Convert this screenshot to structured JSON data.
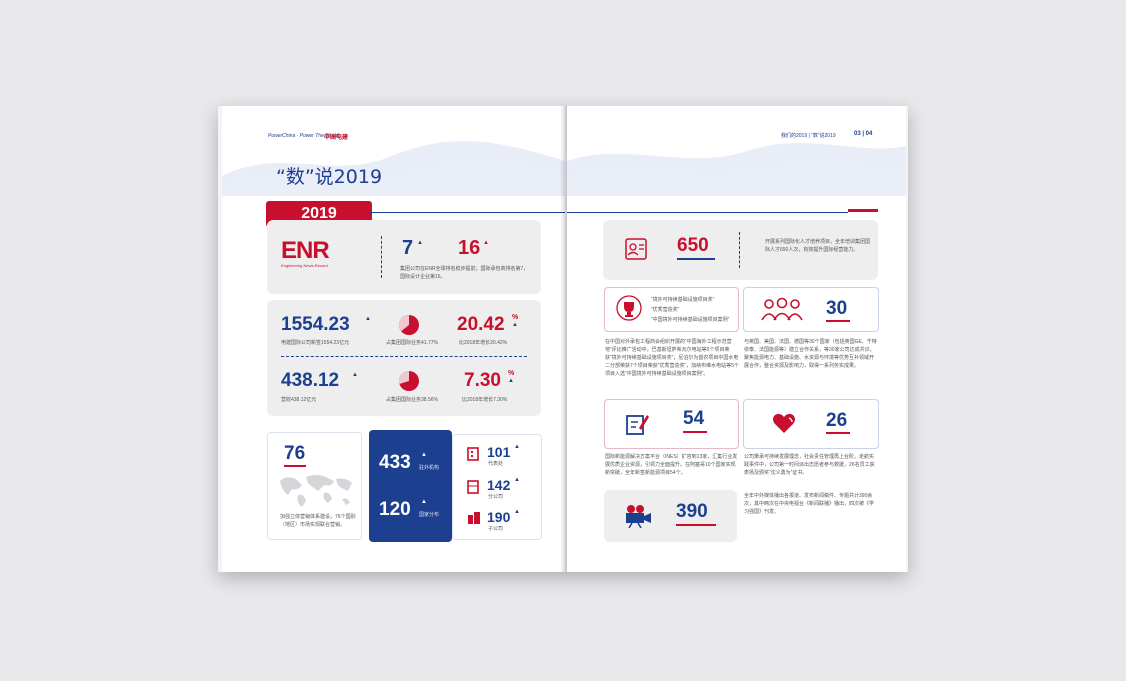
{
  "left_page": {
    "header_brand": "PowerChina · Power The World",
    "header_logo": "中国电建",
    "title": "“数”说2019",
    "year_badge": "2019",
    "enr": {
      "logo_text": "ENR",
      "logo_sub": "Engineering News-Record",
      "stat1": "7",
      "stat2": "16",
      "caption": "集团公司在ENR全球排名稳步提前；国际承包商排名第7，国际设计企业第16。"
    },
    "row1": {
      "value": "1554.23",
      "value_caption": "电建国际公司新签1554.23亿元",
      "pie_caption": "占集团国际业务41.77%",
      "pct": "20.42",
      "pct_unit": "%",
      "pct_caption": "比2018年增长20.42%"
    },
    "row2": {
      "value": "438.12",
      "value_caption": "营收438.12亿元",
      "pie_caption": "占集团国际业务38.56%",
      "pct": "7.30",
      "pct_unit": "%",
      "pct_caption": "比2018年增长7.30%"
    },
    "map_card": {
      "value": "76",
      "caption": "加强立体营销体系建设，76个国别（地区）市场实现联合营销。"
    },
    "blue_card": {
      "v1": "433",
      "c1": "驻外机构",
      "v2": "120",
      "c2": "国家分布"
    },
    "orgs": [
      {
        "value": "101",
        "caption": "代表处"
      },
      {
        "value": "142",
        "caption": "分公司"
      },
      {
        "value": "190",
        "caption": "子公司"
      }
    ]
  },
  "right_page": {
    "header_text": "我们的2019 | “数”说2019",
    "page_nums": "03 | 04",
    "talent": {
      "value": "650",
      "caption": "开展系列国际化人才培养项目，全年培训集团国际人才650人次，有效提升国际经营能力。"
    },
    "awards": {
      "lines": [
        "“境外可持续基础设施项目奖”",
        "“优秀营造奖”",
        "“中国境外可持续基础设施项目案例”"
      ]
    },
    "partners": {
      "value": "30"
    },
    "award_text": "在中国对外承包工程商会组织开展的“中国海外工程示范营地”评比推广活动中，巴基斯坦萨希瓦尔电站等5个项目荣获“境外可持续基础设施项目奖”；尼泊尔为首农项目中国水电二分部荣获7个项目荣获“优秀营造奖”，加纳布维水电站等5个项目入选“中国境外可持续基础设施项目案例”。",
    "partner_text": "与英国、美国、法国、德国等30个国家（包括英国GE、千特依泰、法国能源等）建立合作关系，等30家公司达成共识，聚焦能源电力、基础设施、水资源与环境等优势互补领域开展合作，整合资源及影响力，取得一系列务实成果。",
    "doc": {
      "value": "54"
    },
    "heart": {
      "value": "26"
    },
    "doc_text": "国际新能源解决方案平台（INES）扩容到13家，汇集行业发展优质企业资源，引领力全面提升。在阿塞哥10个国家实现新突破，全年新签新能源项目54个。",
    "heart_text": "公司秉承可持续发展理念，社会责任管理再上台阶。走航实践事件中，公司第一时间派出志愿者参与救援，26名员工获表扬及颁奖“沈义勇为”证书。",
    "media": {
      "value": "390"
    },
    "media_text": "全年中外媒体播出各报道、发布新闻稿件、专题共计390余次，其中两次在中央电视台《新闻联播》播出，四次被《学习强国》刊发。"
  },
  "colors": {
    "navy": "#1d3f8f",
    "red": "#c8102e",
    "panel": "#eeeeef"
  }
}
